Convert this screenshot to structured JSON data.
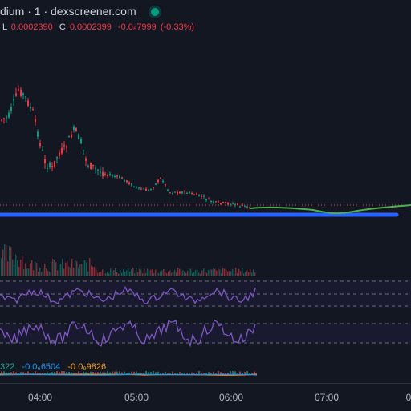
{
  "header": {
    "title": "dium · 1 · dexscreener.com",
    "low_label": "L",
    "low_value": "0.0002390",
    "close_label": "C",
    "close_value": "0.0002399",
    "change_value": "-0.0₆7999",
    "change_pct": "(-0.33%)"
  },
  "oscillator": {
    "values": [
      "322",
      "-0.0₆6504",
      "-0.0₉9826"
    ]
  },
  "time_axis": {
    "labels": [
      "04:00",
      "05:00",
      "06:00",
      "07:00",
      "0"
    ]
  },
  "colors": {
    "background": "#131722",
    "up": "#089981",
    "down": "#f23645",
    "price_line": "#2962ff",
    "forecast_line": "#4caf50",
    "indicator": "#7e57c2"
  }
}
